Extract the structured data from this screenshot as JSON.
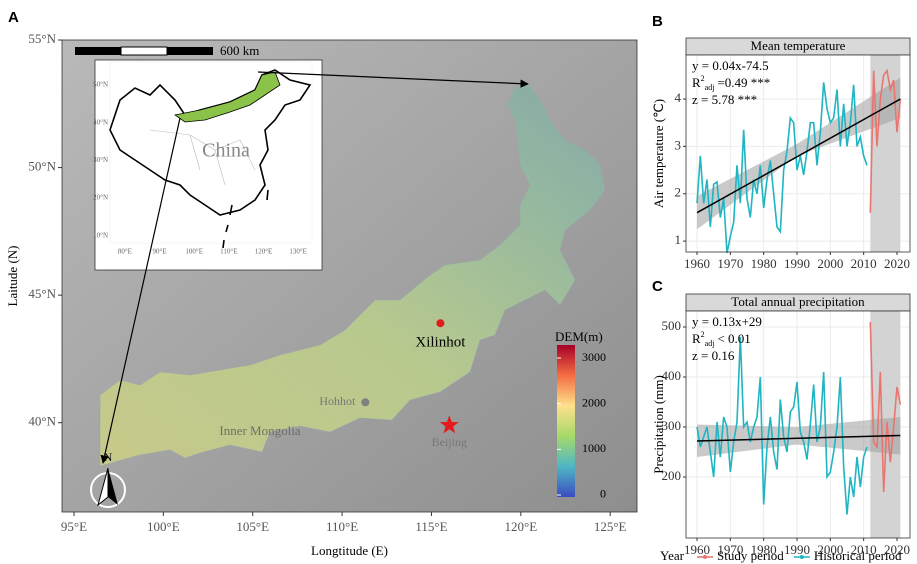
{
  "chart_data": [
    {
      "type": "map",
      "panel": "A",
      "xlim": [
        94.33,
        126.5
      ],
      "ylim": [
        36.5,
        55
      ],
      "xticks": [
        {
          "value": 95,
          "label": "95°E"
        },
        {
          "value": 100,
          "label": "100°E"
        },
        {
          "value": 105,
          "label": "105°E"
        },
        {
          "value": 110,
          "label": "110°E"
        },
        {
          "value": 115,
          "label": "115°E"
        },
        {
          "value": 120,
          "label": "120°E"
        },
        {
          "value": 125,
          "label": "125°E"
        }
      ],
      "yticks": [
        {
          "value": 40,
          "label": "40°N"
        },
        {
          "value": 45,
          "label": "45°N"
        },
        {
          "value": 50,
          "label": "50°N"
        },
        {
          "value": 55,
          "label": "55°N"
        }
      ],
      "xlabel": "Longtitude (E)",
      "ylabel": "Laitude (N)",
      "region_label": "Inner Mongolia",
      "points": [
        {
          "name": "Xilinhot",
          "x": 115.5,
          "y": 43.9,
          "color": "#e41a1c"
        },
        {
          "name": "Hohhot",
          "x": 111.3,
          "y": 40.8,
          "color": "#7f7f7f"
        },
        {
          "name": "Beijing",
          "x": 116.0,
          "y": 39.9,
          "color": "#e41a1c",
          "marker": "star"
        }
      ],
      "colorbar": {
        "title": "DEM(m)",
        "lim": [
          -44,
          3285
        ],
        "ticks": [
          0,
          1000,
          2000,
          3000
        ]
      },
      "scalebar": "600 km",
      "north": "N",
      "inset": {
        "label": "China",
        "xlim": [
          75.7,
          134.0
        ],
        "ylim": [
          8.1,
          56.1
        ],
        "xticks": [
          {
            "value": 80,
            "label": "80°E"
          },
          {
            "value": 90,
            "label": "90°E"
          },
          {
            "value": 100,
            "label": "100°E"
          },
          {
            "value": 110,
            "label": "110°E"
          },
          {
            "value": 120,
            "label": "120°E"
          },
          {
            "value": 130,
            "label": "130°E"
          }
        ],
        "yticks": [
          {
            "value": 10,
            "label": "10°N"
          },
          {
            "value": 20,
            "label": "20°N"
          },
          {
            "value": 30,
            "label": "30°N"
          },
          {
            "value": 40,
            "label": "40°N"
          },
          {
            "value": 50,
            "label": "50°N"
          }
        ]
      }
    },
    {
      "type": "line",
      "panel": "B",
      "title": "Mean temperature",
      "ylabel": "Air temperature (℃)",
      "xlim": [
        1956.7,
        2023.9
      ],
      "ylim": [
        0.77,
        4.93
      ],
      "xticks": [
        1960,
        1970,
        1980,
        1990,
        2000,
        2010,
        2020
      ],
      "yticks": [
        1,
        2,
        3,
        4
      ],
      "grid": true,
      "highlight": [
        2012,
        2021
      ],
      "x": [
        1960,
        1961,
        1962,
        1963,
        1964,
        1965,
        1966,
        1967,
        1968,
        1969,
        1970,
        1971,
        1972,
        1973,
        1974,
        1975,
        1976,
        1977,
        1978,
        1979,
        1980,
        1981,
        1982,
        1983,
        1984,
        1985,
        1986,
        1987,
        1988,
        1989,
        1990,
        1991,
        1992,
        1993,
        1994,
        1995,
        1996,
        1997,
        1998,
        1999,
        2000,
        2001,
        2002,
        2003,
        2004,
        2005,
        2006,
        2007,
        2008,
        2009,
        2010,
        2011,
        2012,
        2013,
        2014,
        2015,
        2016,
        2017,
        2018,
        2019,
        2020,
        2021
      ],
      "series": [
        {
          "color": "#1fb5c2",
          "values": [
            1.8,
            2.8,
            1.8,
            2.3,
            1.3,
            2.2,
            2.25,
            1.5,
            1.9,
            0.75,
            1.1,
            1.4,
            2.6,
            1.8,
            3.35,
            1.9,
            1.5,
            2.3,
            2.0,
            2.6,
            1.7,
            2.3,
            2.7,
            2.0,
            1.3,
            1.2,
            2.5,
            2.9,
            3.6,
            3.5,
            2.5,
            2.8,
            2.4,
            2.9,
            3.5,
            3.5,
            2.6,
            3.3,
            4.35,
            3.8,
            3.5,
            3.6,
            4.2,
            3.0,
            3.9,
            3.0,
            3.5,
            4.3,
            3.0,
            3.2,
            2.8,
            2.6,
            null,
            null,
            null,
            null,
            null,
            null,
            null,
            null,
            null,
            null
          ]
        },
        {
          "color": "#e8766f",
          "values": [
            null,
            null,
            null,
            null,
            null,
            null,
            null,
            null,
            null,
            null,
            null,
            null,
            null,
            null,
            null,
            null,
            null,
            null,
            null,
            null,
            null,
            null,
            null,
            null,
            null,
            null,
            null,
            null,
            null,
            null,
            null,
            null,
            null,
            null,
            null,
            null,
            null,
            null,
            null,
            null,
            null,
            null,
            null,
            null,
            null,
            null,
            null,
            null,
            null,
            null,
            null,
            null,
            1.6,
            4.6,
            3.0,
            4.0,
            4.5,
            4.6,
            4.2,
            4.4,
            3.3,
            4.0
          ]
        }
      ],
      "trend": {
        "x": [
          1960,
          2021
        ],
        "values": [
          1.6,
          4.0
        ]
      },
      "band": {
        "x": [
          1960,
          1990,
          2021
        ],
        "lower": [
          1.25,
          2.8,
          3.6
        ],
        "upper": [
          1.95,
          3.05,
          4.45
        ]
      },
      "annotations": {
        "equation": "y = 0.04x-74.5",
        "r2_parts": [
          "R",
          "2",
          "adj",
          "=0.49 ***"
        ],
        "z": "z = 5.78 ***"
      }
    },
    {
      "type": "line",
      "panel": "C",
      "title": "Total annual precipitation",
      "ylabel": "Precipitation (mm)",
      "xlim": [
        1956.7,
        2023.9
      ],
      "ylim": [
        78,
        532
      ],
      "xticks": [
        1960,
        1970,
        1980,
        1990,
        2000,
        2010,
        2020
      ],
      "yticks": [
        200,
        300,
        400,
        500
      ],
      "grid": true,
      "highlight": [
        2012,
        2021
      ],
      "x": [
        1960,
        1961,
        1962,
        1963,
        1964,
        1965,
        1966,
        1967,
        1968,
        1969,
        1970,
        1971,
        1972,
        1973,
        1974,
        1975,
        1976,
        1977,
        1978,
        1979,
        1980,
        1981,
        1982,
        1983,
        1984,
        1985,
        1986,
        1987,
        1988,
        1989,
        1990,
        1991,
        1992,
        1993,
        1994,
        1995,
        1996,
        1997,
        1998,
        1999,
        2000,
        2001,
        2002,
        2003,
        2004,
        2005,
        2006,
        2007,
        2008,
        2009,
        2010,
        2011,
        2012,
        2013,
        2014,
        2015,
        2016,
        2017,
        2018,
        2019,
        2020,
        2021
      ],
      "series": [
        {
          "name": "Historical period",
          "color": "#1fb5c2",
          "values": [
            300,
            260,
            280,
            300,
            250,
            200,
            310,
            240,
            320,
            300,
            210,
            270,
            310,
            480,
            300,
            310,
            270,
            300,
            320,
            400,
            145,
            260,
            320,
            250,
            215,
            355,
            280,
            250,
            330,
            340,
            390,
            290,
            270,
            235,
            305,
            385,
            270,
            300,
            410,
            200,
            210,
            250,
            300,
            400,
            220,
            125,
            200,
            160,
            240,
            180,
            240,
            260,
            null,
            null,
            null,
            null,
            null,
            null,
            null,
            null,
            null,
            null
          ]
        },
        {
          "name": "Study period",
          "color": "#e8766f",
          "values": [
            null,
            null,
            null,
            null,
            null,
            null,
            null,
            null,
            null,
            null,
            null,
            null,
            null,
            null,
            null,
            null,
            null,
            null,
            null,
            null,
            null,
            null,
            null,
            null,
            null,
            null,
            null,
            null,
            null,
            null,
            null,
            null,
            null,
            null,
            null,
            null,
            null,
            null,
            null,
            null,
            null,
            null,
            null,
            null,
            null,
            null,
            null,
            null,
            null,
            null,
            null,
            null,
            510,
            270,
            260,
            410,
            170,
            310,
            230,
            300,
            380,
            345
          ]
        }
      ],
      "trend": {
        "x": [
          1960,
          2021
        ],
        "values": [
          272,
          283
        ]
      },
      "band": {
        "x": [
          1960,
          1990,
          2021
        ],
        "lower": [
          240,
          265,
          245
        ],
        "upper": [
          305,
          300,
          320
        ]
      },
      "annotations": {
        "equation": "y = 0.13x+29",
        "r2_parts": [
          "R",
          "2",
          "adj",
          "< 0.01"
        ],
        "z": "z = 0.16"
      },
      "legend_title": "Year"
    }
  ]
}
